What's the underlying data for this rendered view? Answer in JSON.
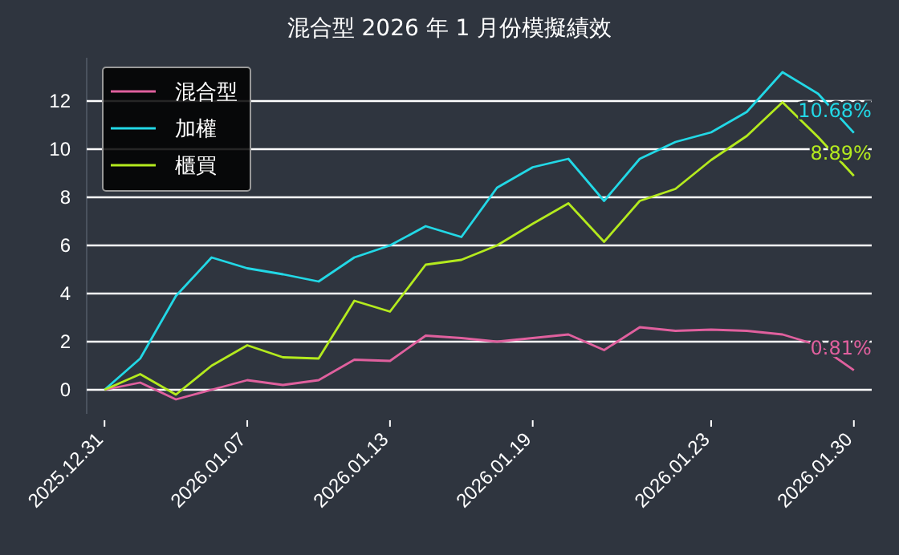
{
  "chart_data": {
    "type": "line",
    "title": "混合型 2026 年 1 月份模擬績效",
    "categories": [
      "2025.12.31",
      null,
      null,
      null,
      "2026.01.07",
      null,
      null,
      null,
      "2026.01.13",
      null,
      null,
      null,
      "2026.01.19",
      null,
      null,
      null,
      null,
      "2026.01.23",
      null,
      null,
      null,
      "2026.01.30"
    ],
    "ylim": [
      -1,
      13.8
    ],
    "yticks": [
      0,
      2,
      4,
      6,
      8,
      10,
      12
    ],
    "series": [
      {
        "name": "混合型",
        "color": "#e0609e",
        "values": [
          0,
          0.3,
          -0.4,
          0,
          0.4,
          0.2,
          0.4,
          1.25,
          1.2,
          2.25,
          2.15,
          2.0,
          2.15,
          2.3,
          1.65,
          2.6,
          2.45,
          2.5,
          2.45,
          2.3,
          1.85,
          0.81
        ]
      },
      {
        "name": "加權",
        "color": "#22d8e6",
        "values": [
          0,
          1.3,
          3.9,
          5.5,
          5.05,
          4.8,
          4.5,
          5.5,
          6.0,
          6.8,
          6.35,
          8.4,
          9.25,
          9.6,
          7.85,
          9.6,
          10.3,
          10.7,
          11.55,
          13.2,
          12.3,
          10.68
        ]
      },
      {
        "name": "櫃買",
        "color": "#b4ea1e",
        "values": [
          0,
          0.65,
          -0.2,
          1.0,
          1.85,
          1.35,
          1.3,
          3.7,
          3.25,
          5.2,
          5.4,
          6.0,
          6.9,
          7.75,
          6.15,
          7.85,
          8.35,
          9.55,
          10.55,
          11.95,
          10.5,
          8.89
        ]
      }
    ],
    "annotations": [
      {
        "text": "0.81%",
        "x": "2026.01.30",
        "y": 0.81
      },
      {
        "text": "10.68%",
        "x": "2026.01.30",
        "y": 10.68
      },
      {
        "text": "8.89%",
        "x": "2026.01.30",
        "y": 8.89
      }
    ],
    "grid": "y",
    "legend": "top left",
    "line_style": "solid",
    "marker": "none"
  }
}
